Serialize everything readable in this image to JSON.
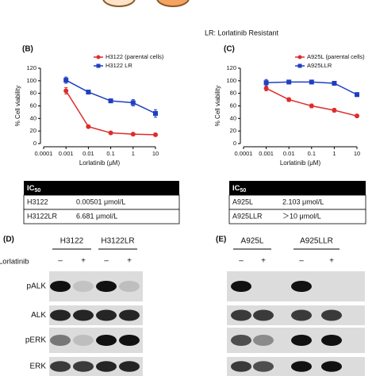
{
  "top_note": "LR: Lorlatinib Resistant",
  "chart_data": [
    {
      "type": "line",
      "panel": "(B)",
      "ylabel": "% Cell viability",
      "xlabel": "Lorlatinib (μM)",
      "x_scale": "log",
      "xlim": [
        0.0001,
        10
      ],
      "xticks": [
        0.0001,
        0.001,
        0.01,
        0.1,
        1,
        10
      ],
      "ylim": [
        0,
        120
      ],
      "yticks": [
        0,
        20,
        40,
        60,
        80,
        100,
        120
      ],
      "legend": "top-right",
      "x": [
        0.001,
        0.01,
        0.1,
        1,
        10
      ],
      "series": [
        {
          "name": "H3122 (parental cells)",
          "color": "#e02b2b",
          "marker": "circle",
          "values": [
            84,
            27,
            17,
            15,
            14
          ],
          "errors": [
            5,
            2,
            2,
            2,
            2
          ]
        },
        {
          "name": "H3122 LR",
          "color": "#1f3fc0",
          "marker": "square",
          "values": [
            101,
            82,
            68,
            65,
            48
          ],
          "errors": [
            5,
            3,
            3,
            5,
            6
          ]
        }
      ]
    },
    {
      "type": "line",
      "panel": "(C)",
      "ylabel": "% Cell viability",
      "xlabel": "Lorlatinib (μM)",
      "x_scale": "log",
      "xlim": [
        0.0001,
        10
      ],
      "xticks": [
        0.0001,
        0.001,
        0.01,
        0.1,
        1,
        10
      ],
      "ylim": [
        0,
        120
      ],
      "yticks": [
        0,
        20,
        40,
        60,
        80,
        100,
        120
      ],
      "legend": "top-right",
      "x": [
        0.001,
        0.01,
        0.1,
        1,
        10
      ],
      "series": [
        {
          "name": "A925L (parental cells)",
          "color": "#e02b2b",
          "marker": "circle",
          "values": [
            88,
            70,
            60,
            53,
            44
          ],
          "errors": [
            4,
            3,
            3,
            3,
            2
          ]
        },
        {
          "name": "A925LLR",
          "color": "#1f3fc0",
          "marker": "square",
          "values": [
            97,
            98,
            98,
            96,
            78
          ],
          "errors": [
            5,
            2,
            2,
            2,
            3
          ]
        }
      ]
    }
  ],
  "tables": [
    {
      "header_main": "IC",
      "header_sub": "50",
      "rows": [
        [
          "H3122",
          "0.00501 μmol/L"
        ],
        [
          "H3122LR",
          "6.681 μmol/L"
        ]
      ]
    },
    {
      "header_main": "IC",
      "header_sub": "50",
      "rows": [
        [
          "A925L",
          "2.103 μmol/L"
        ],
        [
          "A925LLR",
          "＞10 μmol/L"
        ]
      ]
    }
  ],
  "blots": [
    {
      "panel": "(D)",
      "groups": [
        "H3122",
        "H3122LR"
      ],
      "treatment": "Lorlatinib",
      "signs": [
        "–",
        "+",
        "–",
        "+"
      ],
      "rows": [
        "pALK",
        "ALK",
        "pERK",
        "ERK"
      ]
    },
    {
      "panel": "(E)",
      "groups": [
        "A925L",
        "A925LLR"
      ],
      "signs": [
        "–",
        "+",
        "–",
        "+"
      ],
      "rows": [
        "pALK",
        "ALK",
        "pERK",
        "ERK"
      ]
    }
  ]
}
